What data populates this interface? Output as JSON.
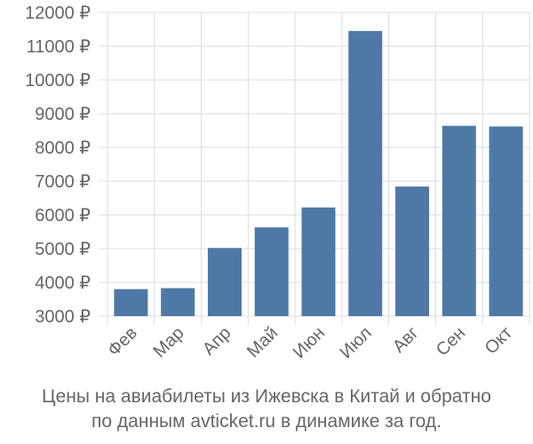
{
  "chart_data": {
    "type": "bar",
    "categories": [
      "Фев",
      "Мар",
      "Апр",
      "Май",
      "Июн",
      "Июл",
      "Авг",
      "Сен",
      "Окт"
    ],
    "values": [
      3800,
      3830,
      5020,
      5630,
      6220,
      11450,
      6840,
      8640,
      8620
    ],
    "ylim": [
      3000,
      12000
    ],
    "yticks": [
      3000,
      4000,
      5000,
      6000,
      7000,
      8000,
      9000,
      10000,
      11000,
      12000
    ],
    "ytick_suffix": " ₽",
    "title_lines": [
      "Цены на авиабилеты из Ижевска в Китай и обратно",
      "по данным avticket.ru в динамике за год."
    ],
    "grid": true,
    "bar_color": "#4e79a7",
    "grid_color": "#dddddd",
    "text_color": "#666666"
  }
}
